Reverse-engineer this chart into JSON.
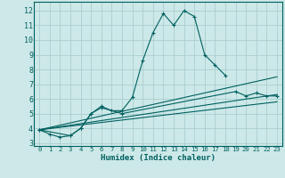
{
  "xlabel": "Humidex (Indice chaleur)",
  "ylabel": "",
  "bg_color": "#cde8e8",
  "grid_color": "#aacece",
  "line_color": "#006060",
  "xlim": [
    -0.5,
    23.5
  ],
  "ylim": [
    2.8,
    12.6
  ],
  "yticks": [
    3,
    4,
    5,
    6,
    7,
    8,
    9,
    10,
    11,
    12
  ],
  "xticks": [
    0,
    1,
    2,
    3,
    4,
    5,
    6,
    7,
    8,
    9,
    10,
    11,
    12,
    13,
    14,
    15,
    16,
    17,
    18,
    19,
    20,
    21,
    22,
    23
  ],
  "series": [
    {
      "x": [
        0,
        1,
        2,
        3,
        4,
        5,
        6,
        7,
        8,
        9,
        10,
        11,
        12,
        13,
        14,
        15,
        16,
        17,
        18
      ],
      "y": [
        3.9,
        3.6,
        3.4,
        3.5,
        4.0,
        5.0,
        5.5,
        5.2,
        5.2,
        6.1,
        8.6,
        10.5,
        11.8,
        11.0,
        12.0,
        11.6,
        9.0,
        8.3,
        7.6
      ],
      "marker": true
    },
    {
      "x": [
        0,
        3,
        4,
        5,
        6,
        8,
        19,
        20,
        21,
        22,
        23
      ],
      "y": [
        3.9,
        3.5,
        4.0,
        5.0,
        5.4,
        5.0,
        6.5,
        6.2,
        6.4,
        6.2,
        6.2
      ],
      "marker": true
    },
    {
      "x": [
        0,
        23
      ],
      "y": [
        3.9,
        7.5
      ],
      "marker": false
    },
    {
      "x": [
        0,
        23
      ],
      "y": [
        3.9,
        6.3
      ],
      "marker": false
    },
    {
      "x": [
        0,
        23
      ],
      "y": [
        3.9,
        5.8
      ],
      "marker": false
    }
  ]
}
